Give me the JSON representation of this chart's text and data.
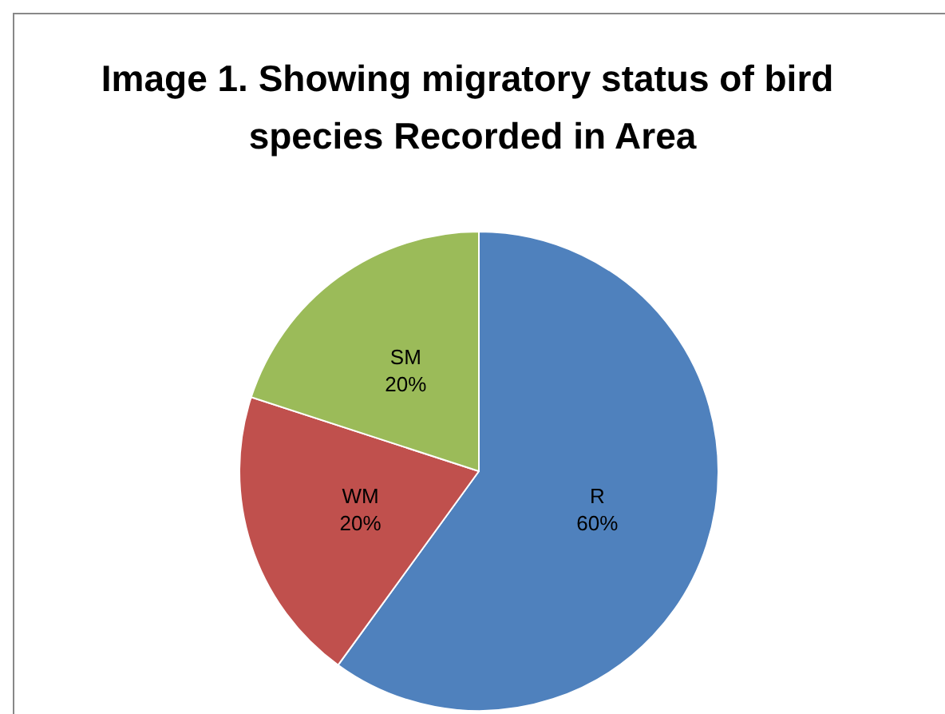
{
  "chart_data": {
    "type": "pie",
    "title": "Image 1. Showing migratory status of bird species Recorded in Area",
    "categories": [
      "R",
      "WM",
      "SM"
    ],
    "values": [
      60,
      20,
      20
    ],
    "value_labels": [
      "60%",
      "20%",
      "20%"
    ],
    "colors": [
      "#4f81bd",
      "#c0504d",
      "#9bbb59"
    ],
    "legend": false
  }
}
